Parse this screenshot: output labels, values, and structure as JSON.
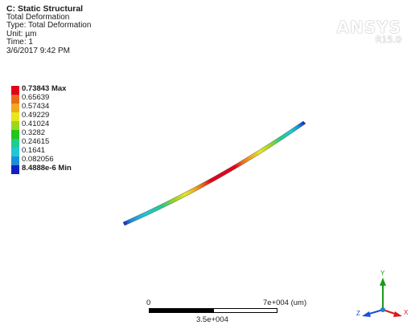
{
  "header": {
    "title": "C: Static Structural",
    "result_name": "Total Deformation",
    "type": "Type: Total Deformation",
    "unit": "Unit: µm",
    "time": "Time: 1",
    "date": "3/6/2017 9:42 PM"
  },
  "legend": {
    "entries": [
      {
        "label": "0.73843 Max",
        "color": "#e3001b"
      },
      {
        "label": "0.65639",
        "color": "#e86b1c"
      },
      {
        "label": "0.57434",
        "color": "#f0aa1e"
      },
      {
        "label": "0.49229",
        "color": "#e8e61e"
      },
      {
        "label": "0.41024",
        "color": "#9cd61e"
      },
      {
        "label": "0.3282",
        "color": "#22c41e"
      },
      {
        "label": "0.24615",
        "color": "#1ecc8c"
      },
      {
        "label": "0.1641",
        "color": "#1ec8d6"
      },
      {
        "label": "0.082056",
        "color": "#1e8ed8"
      },
      {
        "label": "8.4888e-6 Min",
        "color": "#1020c8"
      }
    ]
  },
  "brand": {
    "name": "ANSYS",
    "version": "R15.0"
  },
  "scale_bar": {
    "start_label": "0",
    "end_label": "7e+004 (um)",
    "mid_label": "3.5e+004"
  },
  "triad": {
    "x_label": "X",
    "y_label": "Y",
    "z_label": "Z",
    "x_color": "#d81818",
    "y_color": "#1a9a1a",
    "z_color": "#1a4fd8"
  }
}
